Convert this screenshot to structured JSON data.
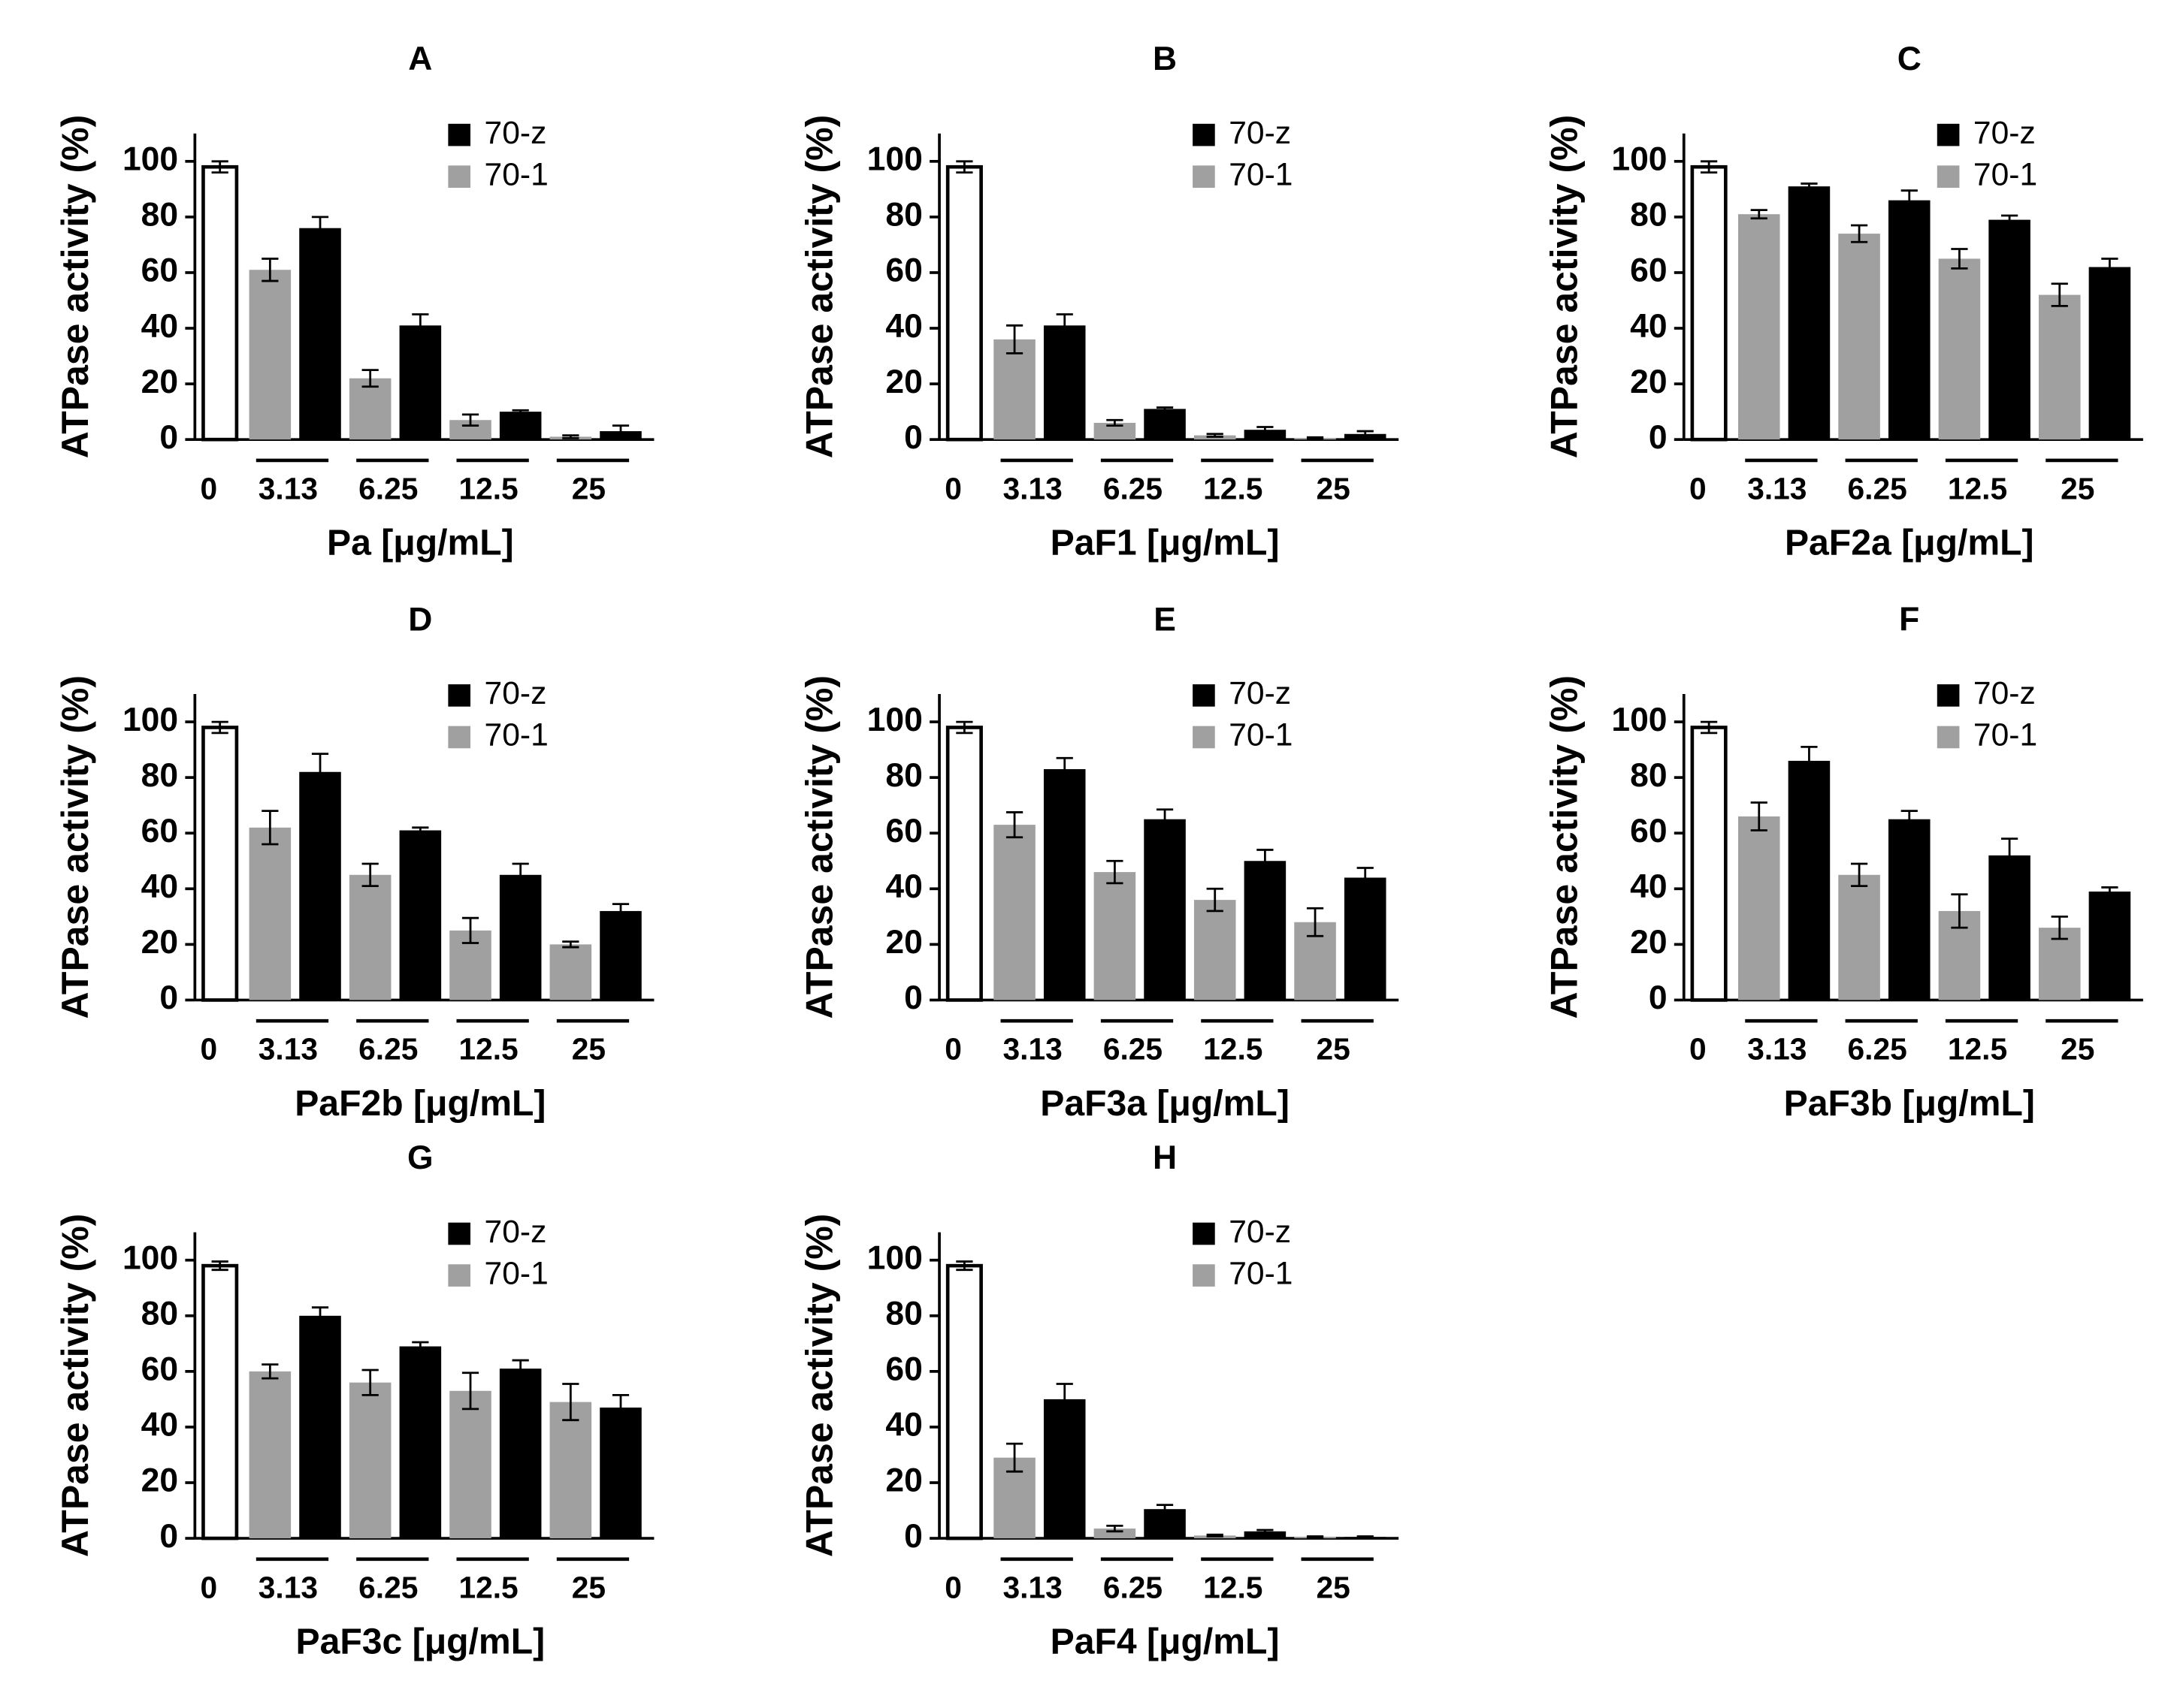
{
  "chart_data": [
    {
      "type": "bar",
      "title": "A",
      "xlabel": "Pa [μg/mL]",
      "ylabel": "ATPase activity (%)",
      "categories": [
        "3.13",
        "6.25",
        "12.5",
        "25"
      ],
      "control": {
        "label": "0",
        "value": 98,
        "error": 2,
        "color": "#ffffff"
      },
      "series": [
        {
          "name": "70-z",
          "color": "#000000",
          "values": [
            76,
            41,
            10,
            3
          ],
          "errors": [
            4,
            4,
            0.5,
            2
          ]
        },
        {
          "name": "70-1",
          "color": "#a0a0a0",
          "values": [
            61,
            22,
            7,
            1
          ],
          "errors": [
            4,
            3,
            2,
            0.5
          ]
        }
      ],
      "ylim": [
        0,
        110
      ],
      "yticks": [
        0,
        20,
        40,
        60,
        80,
        100
      ]
    },
    {
      "type": "bar",
      "title": "B",
      "xlabel": "PaF1 [μg/mL]",
      "ylabel": "ATPase activity (%)",
      "categories": [
        "3.13",
        "6.25",
        "12.5",
        "25"
      ],
      "control": {
        "label": "0",
        "value": 98,
        "error": 2,
        "color": "#ffffff"
      },
      "series": [
        {
          "name": "70-z",
          "color": "#000000",
          "values": [
            41,
            11,
            3.5,
            2
          ],
          "errors": [
            4,
            0.5,
            1,
            1
          ]
        },
        {
          "name": "70-1",
          "color": "#a0a0a0",
          "values": [
            36,
            6,
            1.5,
            0.5
          ],
          "errors": [
            5,
            1,
            0.5,
            0.3
          ]
        }
      ],
      "ylim": [
        0,
        110
      ],
      "yticks": [
        0,
        20,
        40,
        60,
        80,
        100
      ]
    },
    {
      "type": "bar",
      "title": "C",
      "xlabel": "PaF2a [μg/mL]",
      "ylabel": "ATPase activity (%)",
      "categories": [
        "3.13",
        "6.25",
        "12.5",
        "25"
      ],
      "control": {
        "label": "0",
        "value": 98,
        "error": 2,
        "color": "#ffffff"
      },
      "series": [
        {
          "name": "70-z",
          "color": "#000000",
          "values": [
            91,
            86,
            79,
            62
          ],
          "errors": [
            1,
            3.5,
            1.5,
            3
          ]
        },
        {
          "name": "70-1",
          "color": "#a0a0a0",
          "values": [
            81,
            74,
            65,
            52
          ],
          "errors": [
            1.5,
            3,
            3.5,
            4
          ]
        }
      ],
      "ylim": [
        0,
        110
      ],
      "yticks": [
        0,
        20,
        40,
        60,
        80,
        100
      ]
    },
    {
      "type": "bar",
      "title": "D",
      "xlabel": "PaF2b [μg/mL]",
      "ylabel": "ATPase activity (%)",
      "categories": [
        "3.13",
        "6.25",
        "12.5",
        "25"
      ],
      "control": {
        "label": "0",
        "value": 98,
        "error": 2,
        "color": "#ffffff"
      },
      "series": [
        {
          "name": "70-z",
          "color": "#000000",
          "values": [
            82,
            61,
            45,
            32
          ],
          "errors": [
            6.5,
            1,
            4,
            2.5
          ]
        },
        {
          "name": "70-1",
          "color": "#a0a0a0",
          "values": [
            62,
            45,
            25,
            20
          ],
          "errors": [
            6,
            4,
            4.5,
            1
          ]
        }
      ],
      "ylim": [
        0,
        110
      ],
      "yticks": [
        0,
        20,
        40,
        60,
        80,
        100
      ]
    },
    {
      "type": "bar",
      "title": "E",
      "xlabel": "PaF3a [μg/mL]",
      "ylabel": "ATPase activity (%)",
      "categories": [
        "3.13",
        "6.25",
        "12.5",
        "25"
      ],
      "control": {
        "label": "0",
        "value": 98,
        "error": 2,
        "color": "#ffffff"
      },
      "series": [
        {
          "name": "70-z",
          "color": "#000000",
          "values": [
            83,
            65,
            50,
            44
          ],
          "errors": [
            4,
            3.5,
            4,
            3.5
          ]
        },
        {
          "name": "70-1",
          "color": "#a0a0a0",
          "values": [
            63,
            46,
            36,
            28
          ],
          "errors": [
            4.5,
            4,
            4,
            5
          ]
        }
      ],
      "ylim": [
        0,
        110
      ],
      "yticks": [
        0,
        20,
        40,
        60,
        80,
        100
      ]
    },
    {
      "type": "bar",
      "title": "F",
      "xlabel": "PaF3b [μg/mL]",
      "ylabel": "ATPase activity (%)",
      "categories": [
        "3.13",
        "6.25",
        "12.5",
        "25"
      ],
      "control": {
        "label": "0",
        "value": 98,
        "error": 2,
        "color": "#ffffff"
      },
      "series": [
        {
          "name": "70-z",
          "color": "#000000",
          "values": [
            86,
            65,
            52,
            39
          ],
          "errors": [
            5,
            3,
            6,
            1.5
          ]
        },
        {
          "name": "70-1",
          "color": "#a0a0a0",
          "values": [
            66,
            45,
            32,
            26
          ],
          "errors": [
            5,
            4,
            6,
            4
          ]
        }
      ],
      "ylim": [
        0,
        110
      ],
      "yticks": [
        0,
        20,
        40,
        60,
        80,
        100
      ]
    },
    {
      "type": "bar",
      "title": "G",
      "xlabel": "PaF3c [μg/mL]",
      "ylabel": "ATPase activity (%)",
      "categories": [
        "3.13",
        "6.25",
        "12.5",
        "25"
      ],
      "control": {
        "label": "0",
        "value": 98,
        "error": 1.5,
        "color": "#ffffff"
      },
      "series": [
        {
          "name": "70-z",
          "color": "#000000",
          "values": [
            80,
            69,
            61,
            47
          ],
          "errors": [
            3,
            1.5,
            3,
            4.5
          ]
        },
        {
          "name": "70-1",
          "color": "#a0a0a0",
          "values": [
            60,
            56,
            53,
            49
          ],
          "errors": [
            2.5,
            4.5,
            6.5,
            6.5
          ]
        }
      ],
      "ylim": [
        0,
        110
      ],
      "yticks": [
        0,
        20,
        40,
        60,
        80,
        100
      ]
    },
    {
      "type": "bar",
      "title": "H",
      "xlabel": "PaF4 [μg/mL]",
      "ylabel": "ATPase activity (%)",
      "categories": [
        "3.13",
        "6.25",
        "12.5",
        "25"
      ],
      "control": {
        "label": "0",
        "value": 98,
        "error": 1.5,
        "color": "#ffffff"
      },
      "series": [
        {
          "name": "70-z",
          "color": "#000000",
          "values": [
            50,
            10.5,
            2.5,
            0.5
          ],
          "errors": [
            5.5,
            1.5,
            0.5,
            0.2
          ]
        },
        {
          "name": "70-1",
          "color": "#a0a0a0",
          "values": [
            29,
            3.5,
            1,
            0.5
          ],
          "errors": [
            5,
            1,
            0.3,
            0.2
          ]
        }
      ],
      "ylim": [
        0,
        110
      ],
      "yticks": [
        0,
        20,
        40,
        60,
        80,
        100
      ]
    }
  ]
}
